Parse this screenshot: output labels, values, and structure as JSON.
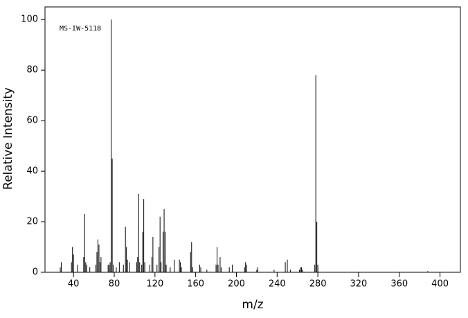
{
  "chart_data": {
    "type": "stick",
    "annotation": "MS-IW-5118",
    "xlabel": "m/z",
    "ylabel": "Relative Intensity",
    "color": "#000000",
    "x": [
      27,
      28,
      38,
      39,
      40,
      44,
      50,
      51,
      52,
      53,
      56,
      62,
      63,
      64,
      65,
      66,
      67,
      74,
      75,
      76,
      77,
      78,
      79,
      82,
      85,
      89,
      91,
      92,
      93,
      95,
      102,
      103,
      104,
      105,
      107,
      108,
      109,
      110,
      115,
      117,
      118,
      122,
      124,
      125,
      126,
      128,
      129,
      130,
      131,
      135,
      139,
      144,
      145,
      146,
      155,
      156,
      157,
      164,
      165,
      171,
      180,
      181,
      182,
      184,
      185,
      193,
      196,
      208,
      209,
      210,
      220,
      221,
      237,
      248,
      250,
      253,
      262,
      263,
      264,
      265,
      277,
      278,
      279,
      280,
      388
    ],
    "values": [
      2,
      4,
      4,
      10,
      7,
      3,
      6,
      23,
      4,
      3,
      2,
      3,
      8,
      13,
      11,
      4,
      6,
      3,
      3,
      4,
      100,
      45,
      3,
      2,
      4,
      3,
      18,
      10,
      5,
      4,
      4,
      6,
      31,
      4,
      3,
      16,
      29,
      4,
      3,
      6,
      14,
      3,
      10,
      22,
      4,
      16,
      25,
      16,
      3,
      2,
      5,
      5,
      4,
      2,
      8,
      12,
      2,
      3,
      2,
      1,
      3,
      10,
      3,
      6,
      2,
      2,
      3,
      2,
      4,
      3,
      1,
      2,
      1,
      4,
      5,
      1,
      1,
      2,
      2,
      1,
      3,
      78,
      20,
      3,
      0.5
    ],
    "xlim": [
      12,
      420
    ],
    "ylim": [
      0,
      105
    ],
    "xticks": [
      40,
      80,
      120,
      160,
      200,
      240,
      280,
      320,
      360,
      400
    ],
    "yticks": [
      0,
      20,
      40,
      60,
      80,
      100
    ]
  }
}
